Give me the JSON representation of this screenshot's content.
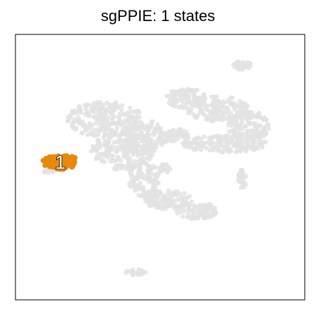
{
  "chart_data": {
    "type": "scatter",
    "title": "sgPPIE: 1 states",
    "xlabel": "",
    "ylabel": "",
    "grid": false,
    "legend": "none",
    "colors": {
      "background_points": "#e3e3e3",
      "highlight": "#e8890e",
      "label_fill": "#ffffff",
      "label_stroke": "#000000",
      "frame": "#000000"
    },
    "highlighted_states": [
      {
        "label": "1",
        "center": [
          15.5,
          52.0
        ],
        "points": 94
      }
    ],
    "background_regions": [
      {
        "name": "left-center-mass",
        "x_range": [
          12,
          50
        ],
        "y_range": [
          38,
          70
        ]
      },
      {
        "name": "right-arc",
        "x_range": [
          48,
          92
        ],
        "y_range": [
          45,
          72
        ]
      },
      {
        "name": "lower-left-band",
        "x_range": [
          36,
          72
        ],
        "y_range": [
          20,
          48
        ]
      },
      {
        "name": "upper-right-blob",
        "x_range": [
          75,
          84
        ],
        "y_range": [
          86,
          90
        ]
      },
      {
        "name": "left-islet",
        "x_range": [
          2,
          12
        ],
        "y_range": [
          48,
          50
        ]
      },
      {
        "name": "right-islet",
        "x_range": [
          74,
          82
        ],
        "y_range": [
          36,
          47
        ]
      },
      {
        "name": "bottom-islet",
        "x_range": [
          35,
          46
        ],
        "y_range": [
          7,
          10
        ]
      }
    ]
  }
}
